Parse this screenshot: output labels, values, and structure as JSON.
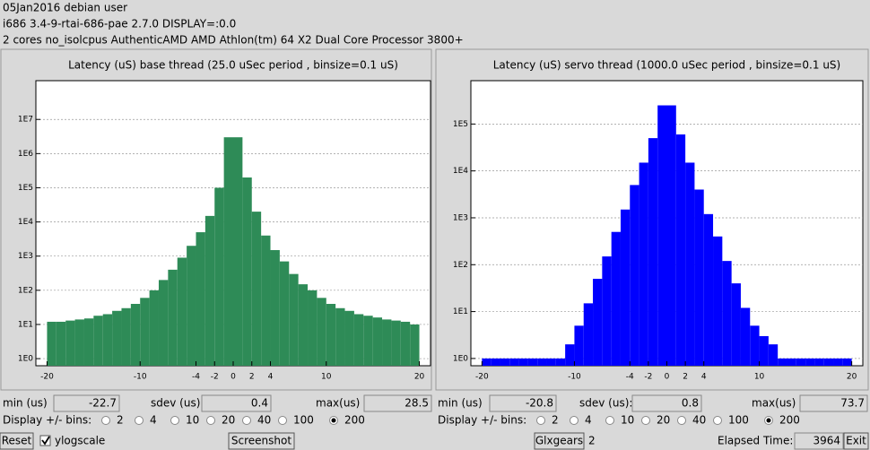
{
  "header": {
    "lines": [
      "05Jan2016 debian user",
      "i686  3.4-9-rtai-686-pae  2.7.0  DISPLAY=:0.0",
      "2 cores  no_isolcpus   AuthenticAMD  AMD Athlon(tm) 64 X2 Dual Core Processor 3800+"
    ]
  },
  "chart_data": [
    {
      "type": "histogram",
      "title": "Latency (uS) base thread (25.0 uSec period , binsize=0.1 uS)",
      "bins": [
        -20,
        -19,
        -18,
        -17,
        -16,
        -15,
        -14,
        -13,
        -12,
        -11,
        -10,
        -9,
        -8,
        -7,
        -6,
        -5,
        -4,
        -3,
        -2,
        -1,
        0,
        1,
        2,
        3,
        4,
        5,
        6,
        7,
        8,
        9,
        10,
        11,
        12,
        13,
        14,
        15,
        16,
        17,
        18,
        19,
        20
      ],
      "values": [
        12,
        12,
        13,
        14,
        15,
        18,
        20,
        25,
        30,
        40,
        60,
        100,
        200,
        400,
        900,
        2000,
        5000,
        15000,
        100000,
        3000000,
        3000000,
        200000,
        20000,
        4000,
        1500,
        700,
        300,
        150,
        100,
        60,
        40,
        30,
        25,
        20,
        18,
        16,
        14,
        13,
        12,
        10
      ],
      "color": "#2e8b57",
      "xlim": [
        -21.2,
        21.2
      ],
      "xticks": [
        -20,
        -10,
        -4,
        -2,
        0,
        2,
        4,
        10,
        20
      ],
      "ylim": [
        0.62,
        136000000
      ],
      "yticks": [
        {
          "value": 1,
          "label": "1E0"
        },
        {
          "value": 10,
          "label": "1E1"
        },
        {
          "value": 100,
          "label": "1E2"
        },
        {
          "value": 1000,
          "label": "1E3"
        },
        {
          "value": 10000,
          "label": "1E4"
        },
        {
          "value": 100000,
          "label": "1E5"
        },
        {
          "value": 1000000,
          "label": "1E6"
        },
        {
          "value": 10000000,
          "label": "1E7"
        }
      ],
      "log_scale": true,
      "grid": true
    },
    {
      "type": "histogram",
      "title": "Latency (uS) servo thread (1000.0 uSec period , binsize=0.1 uS)",
      "bins": [
        -20,
        -19,
        -18,
        -17,
        -16,
        -15,
        -14,
        -13,
        -12,
        -11,
        -10,
        -9,
        -8,
        -7,
        -6,
        -5,
        -4,
        -3,
        -2,
        -1,
        0,
        1,
        2,
        3,
        4,
        5,
        6,
        7,
        8,
        9,
        10,
        11,
        12,
        13,
        14,
        15,
        16,
        17,
        18,
        19,
        20
      ],
      "values": [
        1,
        1,
        1,
        1,
        1,
        1,
        1,
        1,
        1,
        2,
        5,
        15,
        50,
        150,
        500,
        1500,
        5000,
        15000,
        50000,
        250000,
        250000,
        60000,
        15000,
        4000,
        1200,
        400,
        120,
        40,
        12,
        5,
        3,
        2,
        1,
        1,
        1,
        1,
        1,
        1,
        1,
        1
      ],
      "color": "#0000ff",
      "xlim": [
        -21.2,
        21.2
      ],
      "xticks": [
        -20,
        -10,
        -4,
        -2,
        0,
        2,
        4,
        10,
        20
      ],
      "ylim": [
        0.7,
        840000
      ],
      "yticks": [
        {
          "value": 1,
          "label": "1E0"
        },
        {
          "value": 10,
          "label": "1E1"
        },
        {
          "value": 100,
          "label": "1E2"
        },
        {
          "value": 1000,
          "label": "1E3"
        },
        {
          "value": 10000,
          "label": "1E4"
        },
        {
          "value": 100000,
          "label": "1E5"
        }
      ],
      "log_scale": true,
      "grid": true
    }
  ],
  "panels": [
    {
      "min_label": "min (us)",
      "min": -22.7,
      "sdev_label": "sdev (us):",
      "sdev": 0.4,
      "max_label": "max(us)",
      "max": 28.5,
      "bins_label": "Display +/- bins:",
      "bin_options": [
        2,
        4,
        10,
        20,
        40,
        100,
        200
      ],
      "selected": 200
    },
    {
      "min_label": "min (us)",
      "min": -20.8,
      "sdev_label": "sdev (us):",
      "sdev": 0.8,
      "max_label": "max(us)",
      "max": 73.7,
      "bins_label": "Display +/- bins:",
      "bin_options": [
        2,
        4,
        10,
        20,
        40,
        100,
        200
      ],
      "selected": 200
    }
  ],
  "footer": {
    "reset": "Reset",
    "ylogscale": "ylogscale",
    "ylogscale_checked": true,
    "screenshot": "Screenshot",
    "glxgears": "Glxgears",
    "glxgears_count": 2,
    "elapsed_label": "Elapsed Time:",
    "elapsed": 3964,
    "exit": "Exit"
  }
}
